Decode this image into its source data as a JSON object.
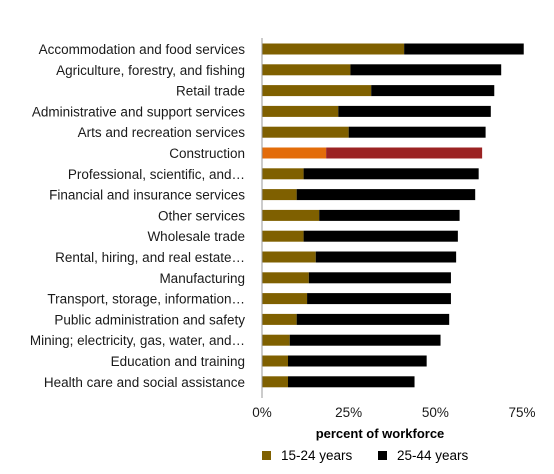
{
  "chart_data": {
    "type": "bar",
    "orientation": "horizontal",
    "stacked": true,
    "xlabel": "percent of workforce",
    "xlim": [
      0,
      75
    ],
    "x_ticks": [
      "0%",
      "25%",
      "50%",
      "75%"
    ],
    "x_tick_values": [
      0,
      25,
      50,
      75
    ],
    "grid": false,
    "legend_position": "bottom",
    "categories": [
      "Accommodation and food services",
      "Agriculture, forestry, and fishing",
      "Retail trade",
      "Administrative and support services",
      "Arts and recreation services",
      "Construction",
      "Professional, scientific, and…",
      "Financial and insurance services",
      "Other services",
      "Wholesale trade",
      "Rental, hiring, and real estate…",
      "Manufacturing",
      "Transport, storage, information…",
      "Public administration and safety",
      "Mining; electricity, gas, water, and…",
      "Education and training",
      "Health care and social assistance"
    ],
    "series": [
      {
        "name": "15-24 years",
        "color": "#7f6000",
        "values": [
          41,
          25.5,
          31.5,
          22,
          25,
          18.5,
          12,
          10,
          16.5,
          12,
          15.5,
          13.5,
          13,
          10,
          8,
          7.5,
          7.5
        ]
      },
      {
        "name": "25-44 years",
        "color": "#000000",
        "values": [
          34.5,
          43.5,
          35.5,
          44,
          39.5,
          45,
          50.5,
          51.5,
          40.5,
          44.5,
          40.5,
          41,
          41.5,
          44,
          43.5,
          40,
          36.5
        ]
      }
    ],
    "highlight": {
      "category": "Construction",
      "colors": [
        "#e36c0a",
        "#9b2323"
      ]
    }
  }
}
